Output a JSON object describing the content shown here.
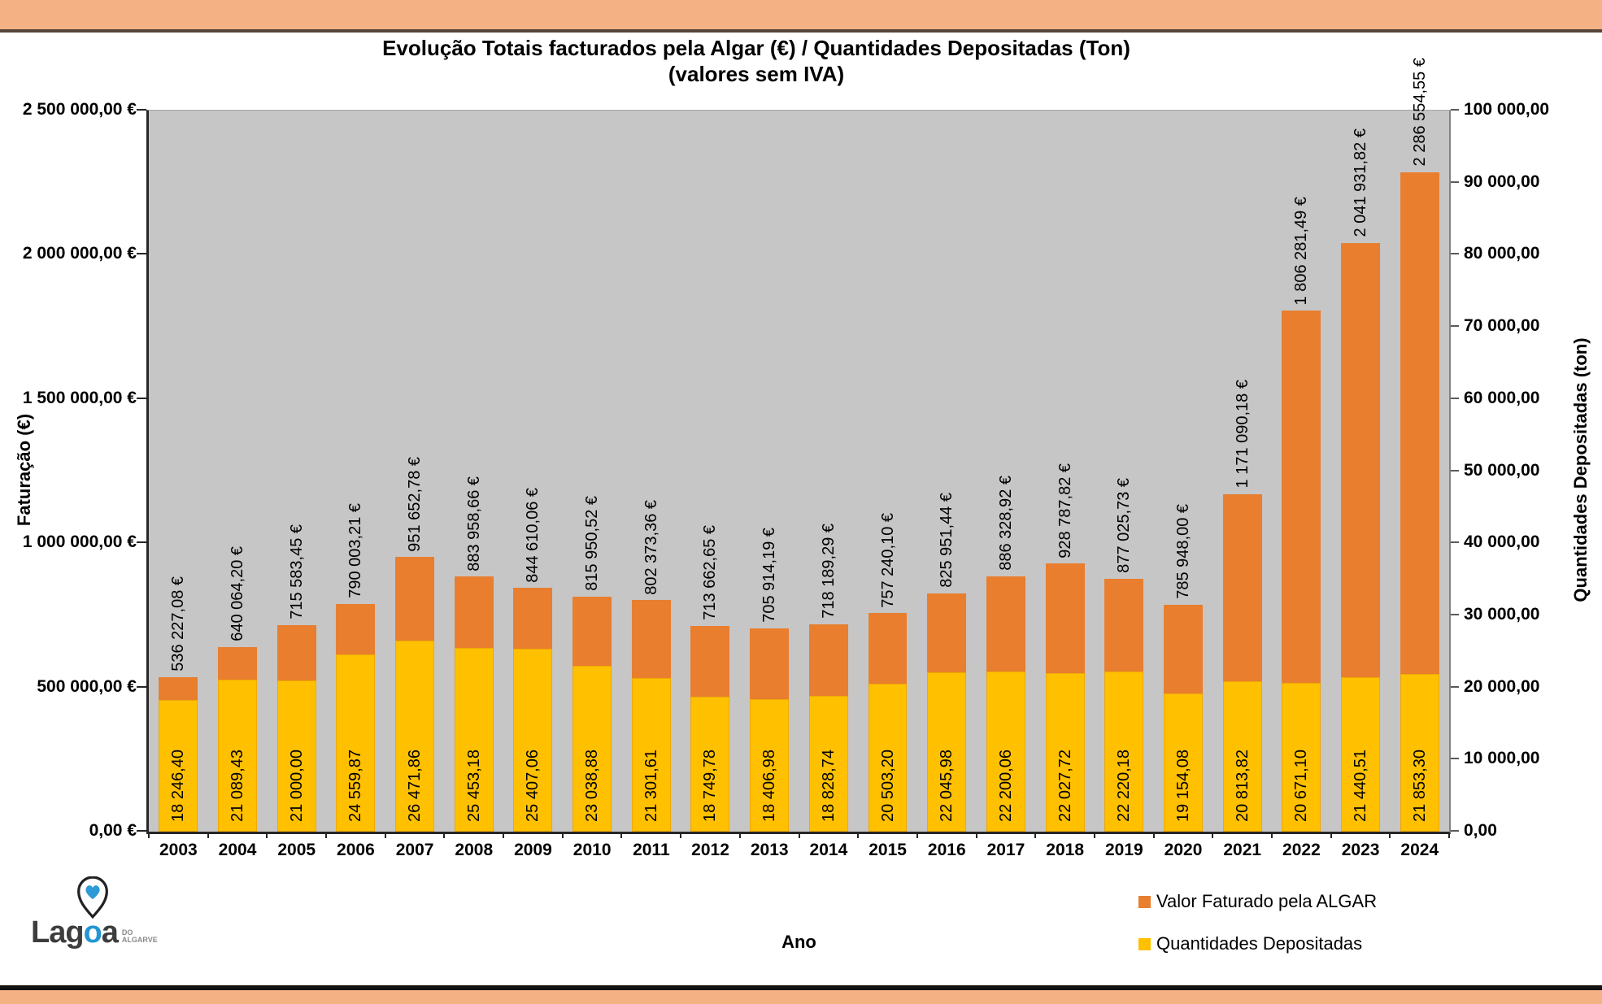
{
  "page": {
    "band_color": "#F4B183",
    "band_rule_color": "#55453C",
    "footer_rule_color": "#121212"
  },
  "chart": {
    "title_line1": "Evolução Totais facturados pela Algar (€) / Quantidades Depositadas (Ton)",
    "title_line2": "(valores sem IVA)",
    "left_axis_title": "Faturação (€)",
    "right_axis_title": "Quantidades Depositadas (ton)",
    "x_axis_title": "Ano"
  },
  "legend": {
    "items": [
      {
        "label": "Valor Faturado pela ALGAR",
        "color": "#E87E2E"
      },
      {
        "label": "Quantidades Depositadas",
        "color": "#FFC000"
      }
    ]
  },
  "logo": {
    "word_dark1": "Lag",
    "word_blue": "o",
    "word_dark2": "a",
    "sub_line1": "DO",
    "sub_line2": "ALGARVE"
  },
  "chart_data": {
    "type": "bar",
    "title": "Evolução Totais facturados pela Algar (€) / Quantidades Depositadas (Ton) (valores sem IVA)",
    "xlabel": "Ano",
    "plot_background": "#C6C6C6",
    "grid": false,
    "legend_position": "bottom-right",
    "categories": [
      2003,
      2004,
      2005,
      2006,
      2007,
      2008,
      2009,
      2010,
      2011,
      2012,
      2013,
      2014,
      2015,
      2016,
      2017,
      2018,
      2019,
      2020,
      2021,
      2022,
      2023,
      2024
    ],
    "series": [
      {
        "name": "Valor Faturado pela ALGAR",
        "axis": "left",
        "color": "#E87E2E",
        "values": [
          536227.08,
          640064.2,
          715583.45,
          790003.21,
          951652.78,
          883958.66,
          844610.06,
          815950.52,
          802373.36,
          713662.65,
          705914.19,
          718189.29,
          757240.1,
          825951.44,
          886328.92,
          928787.82,
          877025.73,
          785948.0,
          1171090.18,
          1806281.49,
          2041931.82,
          2286554.55
        ],
        "labels": [
          "536 227,08 €",
          "640 064,20 €",
          "715 583,45 €",
          "790 003,21 €",
          "951 652,78 €",
          "883 958,66 €",
          "844 610,06 €",
          "815 950,52 €",
          "802 373,36 €",
          "713 662,65 €",
          "705 914,19 €",
          "718 189,29 €",
          "757 240,10 €",
          "825 951,44 €",
          "886 328,92 €",
          "928 787,82 €",
          "877 025,73 €",
          "785 948,00 €",
          "1 171 090,18 €",
          "1 806 281,49 €",
          "2 041 931,82 €",
          "2 286 554,55 €"
        ]
      },
      {
        "name": "Quantidades Depositadas",
        "axis": "right",
        "color": "#FFC000",
        "values": [
          18246.4,
          21089.43,
          21000.0,
          24559.87,
          26471.86,
          25453.18,
          25407.06,
          23038.88,
          21301.61,
          18749.78,
          18406.98,
          18828.74,
          20503.2,
          22045.98,
          22200.06,
          22027.72,
          22220.18,
          19154.08,
          20813.82,
          20671.1,
          21440.51,
          21853.3
        ],
        "labels": [
          "18 246,40",
          "21 089,43",
          "21 000,00",
          "24 559,87",
          "26 471,86",
          "25 453,18",
          "25 407,06",
          "23 038,88",
          "21 301,61",
          "18 749,78",
          "18 406,98",
          "18 828,74",
          "20 503,20",
          "22 045,98",
          "22 200,06",
          "22 027,72",
          "22 220,18",
          "19 154,08",
          "20 813,82",
          "20 671,10",
          "21 440,51",
          "21 853,30"
        ]
      }
    ],
    "left_axis": {
      "title": "Faturação (€)",
      "min": 0,
      "max": 2500000,
      "step": 500000,
      "tick_labels": [
        "2 500 000,00 €",
        "2 000 000,00 €",
        "1 500 000,00 €",
        "1 000 000,00 €",
        "500 000,00 €",
        "0,00 €"
      ]
    },
    "right_axis": {
      "title": "Quantidades Depositadas (ton)",
      "min": 0,
      "max": 100000,
      "step": 10000,
      "tick_labels": [
        "100 000,00",
        "90 000,00",
        "80 000,00",
        "70 000,00",
        "60 000,00",
        "50 000,00",
        "40 000,00",
        "30 000,00",
        "20 000,00",
        "10 000,00",
        "0,00"
      ]
    }
  }
}
